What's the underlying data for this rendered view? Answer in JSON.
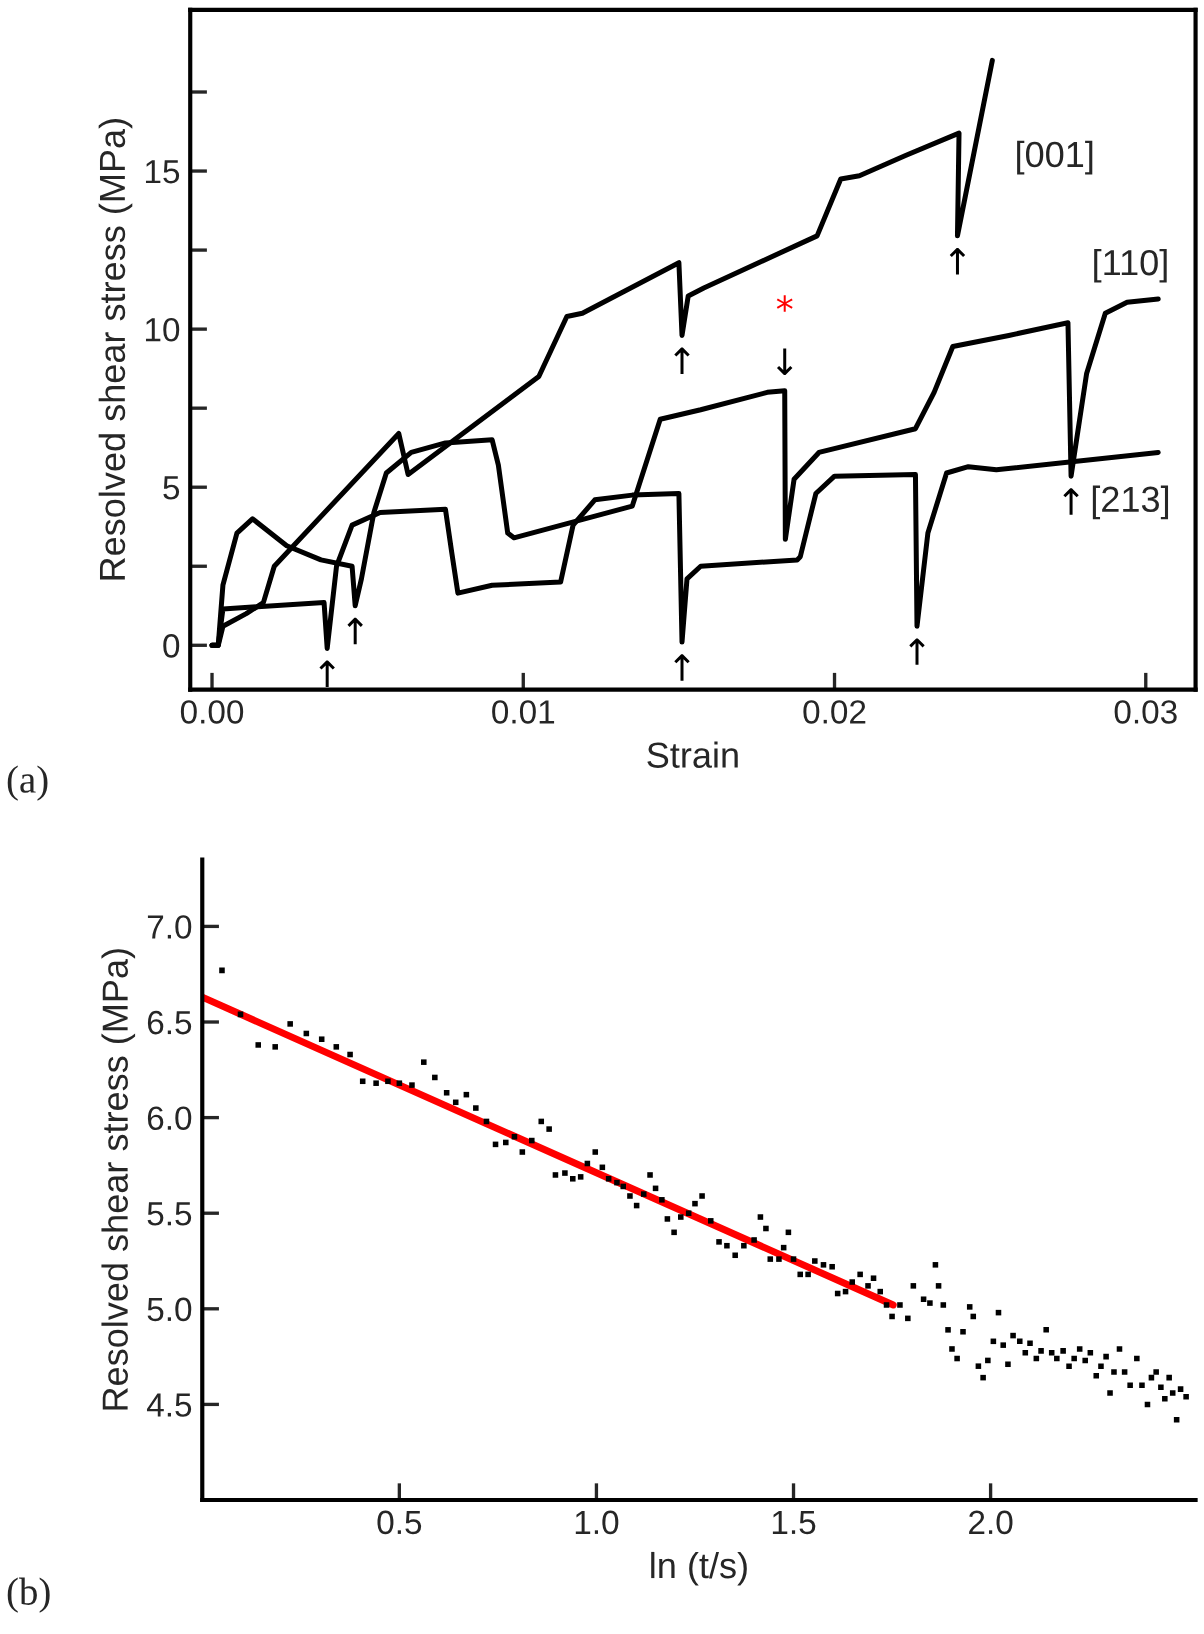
{
  "chart_data": [
    {
      "type": "line",
      "xlabel": "Strain",
      "ylabel": "Resolved shear stress (MPa)",
      "xlim": [
        -0.0007,
        0.0316
      ],
      "ylim": [
        -1.4,
        20.1
      ],
      "xticks": [
        {
          "value": 0.0,
          "label": "0.00"
        },
        {
          "value": 0.01,
          "label": "0.01"
        },
        {
          "value": 0.02,
          "label": "0.02"
        },
        {
          "value": 0.03,
          "label": "0.03"
        }
      ],
      "yticks": [
        0,
        {
          "value": 2.5,
          "label": null
        },
        5,
        {
          "value": 7.5,
          "label": null
        },
        10,
        {
          "value": 12.5,
          "label": null
        },
        15,
        {
          "value": 17.5,
          "label": null
        }
      ],
      "grid": false,
      "series": [
        {
          "name": "[001]",
          "color": "#000000",
          "x": [
            0.0,
            0.0002,
            0.00035,
            0.0011,
            0.00165,
            0.002,
            0.006,
            0.0063,
            0.0105,
            0.0114,
            0.0119,
            0.015,
            0.0151,
            0.0153,
            0.0158,
            0.01944,
            0.0202,
            0.0208,
            0.0223,
            0.024,
            0.02395,
            0.02507
          ],
          "values": [
            0.0,
            0.0,
            0.6,
            1.0,
            1.35,
            2.5,
            6.7,
            5.4,
            8.5,
            10.4,
            10.5,
            12.1,
            9.8,
            11.05,
            11.3,
            12.95,
            14.75,
            14.85,
            15.5,
            16.2,
            12.95,
            18.5
          ]
        },
        {
          "name": "[110]",
          "color": "#000000",
          "x": [
            0.0,
            0.0002,
            0.00035,
            0.0008,
            0.0013,
            0.0024,
            0.0035,
            0.0045,
            0.0046,
            0.0048,
            0.0052,
            0.0056,
            0.0064,
            0.0075,
            0.009,
            0.0092,
            0.0095,
            0.0097,
            0.0135,
            0.0144,
            0.0157,
            0.01784,
            0.0184,
            0.01842,
            0.0187,
            0.0195,
            0.0226,
            0.0232,
            0.0238,
            0.0256,
            0.0275,
            0.0276,
            0.0281,
            0.0287,
            0.0294,
            0.0304
          ],
          "values": [
            0.0,
            0.0,
            1.9,
            3.55,
            4.0,
            3.15,
            2.7,
            2.5,
            1.25,
            2.1,
            4.2,
            5.45,
            6.1,
            6.4,
            6.5,
            5.7,
            3.55,
            3.4,
            4.4,
            7.15,
            7.45,
            8.0,
            8.05,
            3.35,
            5.25,
            6.1,
            6.85,
            8.0,
            9.45,
            9.8,
            10.2,
            5.35,
            8.6,
            10.5,
            10.85,
            10.95
          ]
        },
        {
          "name": "[213]",
          "color": "#000000",
          "x": [
            0.0,
            0.0002,
            0.00035,
            0.0036,
            0.0037,
            0.004,
            0.0045,
            0.0054,
            0.0075,
            0.0077,
            0.0079,
            0.009,
            0.0112,
            0.0116,
            0.0123,
            0.0135,
            0.015,
            0.0151,
            0.01526,
            0.0157,
            0.0188,
            0.0189,
            0.0194,
            0.02,
            0.0226,
            0.02265,
            0.023,
            0.0236,
            0.0243,
            0.0252,
            0.0304
          ],
          "values": [
            0.0,
            0.0,
            1.15,
            1.35,
            -0.1,
            2.5,
            3.8,
            4.2,
            4.3,
            2.95,
            1.65,
            1.9,
            2.0,
            3.8,
            4.6,
            4.75,
            4.8,
            0.1,
            2.1,
            2.5,
            2.7,
            2.8,
            4.8,
            5.35,
            5.4,
            0.6,
            3.55,
            5.45,
            5.65,
            5.55,
            6.1
          ]
        }
      ],
      "annotations": [
        "(a)",
        {
          "text": "↑",
          "x": 0.0037,
          "y": -0.1
        },
        {
          "text": "↑",
          "x": 0.0046,
          "y": 1.25
        },
        {
          "text": "↑",
          "x": 0.0151,
          "y": 9.8
        },
        {
          "text": "↑",
          "x": 0.0151,
          "y": 0.1
        },
        {
          "text": "↑",
          "x": 0.02265,
          "y": 0.6
        },
        {
          "text": "↑",
          "x": 0.02395,
          "y": 12.95
        },
        {
          "text": "↑",
          "x": 0.0276,
          "y": 5.35
        },
        {
          "text": "↓",
          "x": 0.0184,
          "y": 8.05
        },
        {
          "text": "*",
          "x": 0.0184,
          "y": 8.05
        }
      ]
    },
    {
      "type": "scatter",
      "xlabel": "ln (t/s)",
      "ylabel": "Resolved shear stress (MPa)",
      "xlim": [
        0.0,
        2.52
      ],
      "ylim": [
        4.0,
        7.35
      ],
      "xticks": [
        0.5,
        {
          "value": 1.0,
          "label": "1.0"
        },
        1.5,
        {
          "value": 2.0,
          "label": "2.0"
        }
      ],
      "yticks": [
        4.5,
        {
          "value": 5.0,
          "label": "5.0"
        },
        5.5,
        {
          "value": 6.0,
          "label": "6.0"
        },
        6.5,
        {
          "value": 7.0,
          "label": "7.0"
        }
      ],
      "grid": false,
      "series": [
        {
          "color": "#000000",
          "marker": "square",
          "x": [
            0.05,
            0.097,
            0.142,
            0.185,
            0.223,
            0.264,
            0.303,
            0.34,
            0.375,
            0.407,
            0.441,
            0.471,
            0.5,
            0.532,
            0.562,
            0.59,
            0.62,
            0.643,
            0.67,
            0.694,
            0.721,
            0.744,
            0.77,
            0.792,
            0.812,
            0.836,
            0.86,
            0.88,
            0.896,
            0.92,
            0.94,
            0.96,
            0.977,
            0.997,
            1.015,
            1.031,
            1.052,
            1.068,
            1.085,
            1.102,
            1.12,
            1.136,
            1.15,
            1.166,
            1.18,
            1.197,
            1.214,
            1.234,
            1.25,
            1.268,
            1.29,
            1.311,
            1.331,
            1.352,
            1.374,
            1.4,
            1.416,
            1.43,
            1.441,
            1.463,
            1.475,
            1.487,
            1.5,
            1.517,
            1.537,
            1.554,
            1.576,
            1.598,
            1.612,
            1.632,
            1.649,
            1.669,
            1.689,
            1.703,
            1.72,
            1.736,
            1.75,
            1.77,
            1.79,
            1.804,
            1.83,
            1.846,
            1.86,
            1.868,
            1.88,
            1.892,
            1.902,
            1.915,
            1.93,
            1.947,
            1.956,
            1.969,
            1.981,
            1.993,
            2.007,
            2.02,
            2.032,
            2.044,
            2.057,
            2.074,
            2.088,
            2.1,
            2.116,
            2.128,
            2.141,
            2.155,
            2.168,
            2.184,
            2.199,
            2.212,
            2.226,
            2.24,
            2.253,
            2.268,
            2.28,
            2.293,
            2.303,
            2.313,
            2.327,
            2.34,
            2.354,
            2.371,
            2.384,
            2.398,
            2.408,
            2.42,
            2.432,
            2.442,
            2.453,
            2.462,
            2.472,
            2.482,
            2.496
          ],
          "values": [
            6.77,
            6.54,
            6.38,
            6.37,
            6.49,
            6.44,
            6.41,
            6.37,
            6.33,
            6.19,
            6.18,
            6.19,
            6.18,
            6.17,
            6.29,
            6.21,
            6.13,
            6.08,
            6.12,
            6.05,
            5.98,
            5.86,
            5.87,
            5.9,
            5.82,
            5.88,
            5.98,
            5.94,
            5.7,
            5.71,
            5.68,
            5.69,
            5.76,
            5.82,
            5.74,
            5.68,
            5.66,
            5.64,
            5.59,
            5.54,
            5.6,
            5.7,
            5.63,
            5.57,
            5.47,
            5.4,
            5.48,
            5.5,
            5.55,
            5.59,
            5.46,
            5.35,
            5.33,
            5.28,
            5.33,
            5.36,
            5.48,
            5.42,
            5.26,
            5.26,
            5.32,
            5.4,
            5.26,
            5.18,
            5.18,
            5.25,
            5.23,
            5.22,
            5.08,
            5.09,
            5.14,
            5.18,
            5.12,
            5.16,
            5.09,
            5.02,
            4.96,
            5.02,
            4.95,
            5.12,
            5.05,
            5.03,
            5.23,
            5.12,
            5.02,
            4.89,
            4.79,
            4.74,
            4.88,
            5.01,
            4.96,
            4.7,
            4.64,
            4.73,
            4.83,
            4.98,
            4.81,
            4.71,
            4.86,
            4.83,
            4.77,
            4.82,
            4.74,
            4.78,
            4.89,
            4.77,
            4.74,
            4.78,
            4.7,
            4.74,
            4.79,
            4.73,
            4.77,
            4.65,
            4.7,
            4.75,
            4.56,
            4.67,
            4.79,
            4.67,
            4.6,
            4.74,
            4.6,
            4.5,
            4.64,
            4.67,
            4.59,
            4.53,
            4.64,
            4.56,
            4.42,
            4.58,
            4.54
          ]
        },
        {
          "type": "line",
          "color": "#ff0000",
          "x": [
            0.0,
            1.753
          ],
          "values": [
            6.63,
            5.02
          ]
        }
      ],
      "annotations": [
        "(b)"
      ]
    }
  ]
}
